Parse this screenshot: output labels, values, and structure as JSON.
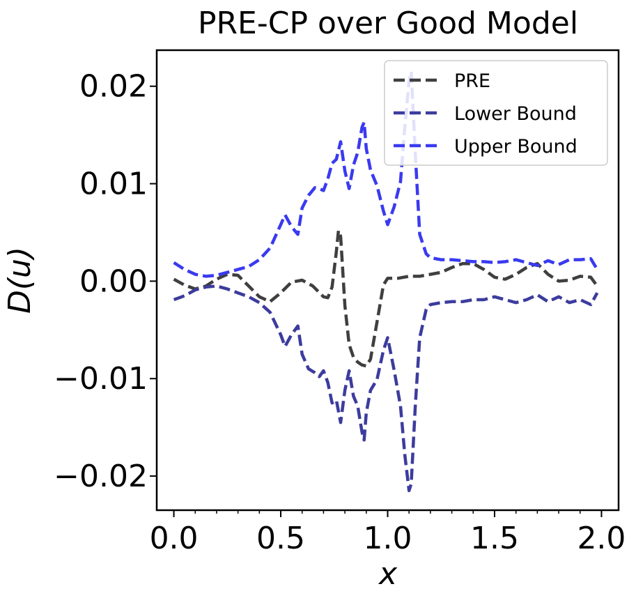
{
  "chart_data": {
    "type": "line",
    "title": "PRE-CP over Good Model",
    "xlabel": "x",
    "ylabel": "D(u)",
    "xlim": [
      -0.08,
      2.08
    ],
    "ylim": [
      -0.0235,
      0.0237
    ],
    "xticks": [
      0.0,
      0.5,
      1.0,
      1.5,
      2.0
    ],
    "xtick_labels": [
      "0.0",
      "0.5",
      "1.0",
      "1.5",
      "2.0"
    ],
    "yticks": [
      -0.02,
      -0.01,
      0.0,
      0.01,
      0.02
    ],
    "ytick_labels": [
      "−0.02",
      "−0.01",
      "0.00",
      "0.01",
      "0.02"
    ],
    "grid": false,
    "legend_position": "top-right",
    "series": [
      {
        "name": "PRE",
        "color": "#3f3f3f",
        "x": [
          0.0,
          0.05,
          0.1,
          0.15,
          0.2,
          0.25,
          0.3,
          0.35,
          0.4,
          0.45,
          0.5,
          0.55,
          0.6,
          0.65,
          0.7,
          0.72,
          0.74,
          0.76,
          0.77,
          0.78,
          0.8,
          0.82,
          0.84,
          0.86,
          0.88,
          0.9,
          0.92,
          0.95,
          0.98,
          1.0,
          1.05,
          1.1,
          1.15,
          1.2,
          1.25,
          1.3,
          1.35,
          1.4,
          1.45,
          1.5,
          1.55,
          1.6,
          1.65,
          1.7,
          1.75,
          1.8,
          1.85,
          1.9,
          1.95,
          1.98
        ],
        "values": [
          0.0002,
          -0.0004,
          -0.0008,
          -0.0005,
          0.0002,
          0.0007,
          0.0006,
          -0.0005,
          -0.0016,
          -0.0021,
          -0.0012,
          -0.0001,
          0.0001,
          -0.0005,
          -0.0016,
          -0.0017,
          -0.0006,
          0.003,
          0.0052,
          0.0046,
          -0.0025,
          -0.0065,
          -0.0078,
          -0.0083,
          -0.0086,
          -0.0087,
          -0.008,
          -0.0042,
          -0.0004,
          0.0003,
          0.0003,
          0.0005,
          0.0005,
          0.0007,
          0.0009,
          0.0014,
          0.0018,
          0.0018,
          0.0012,
          0.0004,
          0.0002,
          0.0007,
          0.0014,
          0.0018,
          0.0007,
          0.0,
          0.0001,
          0.0005,
          0.0004,
          -0.0005
        ]
      },
      {
        "name": "Lower Bound",
        "color": "#3c3c9e",
        "x": [
          0.0,
          0.05,
          0.1,
          0.15,
          0.2,
          0.25,
          0.3,
          0.35,
          0.4,
          0.45,
          0.5,
          0.52,
          0.55,
          0.58,
          0.6,
          0.63,
          0.66,
          0.68,
          0.7,
          0.72,
          0.74,
          0.76,
          0.78,
          0.8,
          0.82,
          0.84,
          0.86,
          0.88,
          0.89,
          0.9,
          0.92,
          0.95,
          0.98,
          1.0,
          1.03,
          1.06,
          1.08,
          1.1,
          1.11,
          1.13,
          1.15,
          1.18,
          1.2,
          1.25,
          1.3,
          1.35,
          1.4,
          1.45,
          1.5,
          1.55,
          1.6,
          1.65,
          1.7,
          1.75,
          1.8,
          1.85,
          1.9,
          1.95,
          1.98
        ],
        "values": [
          -0.0019,
          -0.0015,
          -0.0009,
          -0.0006,
          -0.0005,
          -0.0008,
          -0.0012,
          -0.0016,
          -0.0022,
          -0.0032,
          -0.0055,
          -0.0067,
          -0.0055,
          -0.0046,
          -0.0075,
          -0.009,
          -0.0094,
          -0.0098,
          -0.0092,
          -0.0104,
          -0.0125,
          -0.0122,
          -0.0145,
          -0.0112,
          -0.0092,
          -0.0118,
          -0.0128,
          -0.0155,
          -0.0163,
          -0.0135,
          -0.0112,
          -0.0101,
          -0.0071,
          -0.0058,
          -0.0091,
          -0.0128,
          -0.0178,
          -0.0215,
          -0.0208,
          -0.0125,
          -0.0058,
          -0.0029,
          -0.0024,
          -0.0022,
          -0.0021,
          -0.0021,
          -0.0019,
          -0.0019,
          -0.0016,
          -0.0019,
          -0.0022,
          -0.0019,
          -0.0014,
          -0.0021,
          -0.0016,
          -0.0022,
          -0.0019,
          -0.0024,
          -0.0012
        ]
      },
      {
        "name": "Upper Bound",
        "color": "#3a3af0",
        "x": [
          0.0,
          0.05,
          0.1,
          0.15,
          0.2,
          0.25,
          0.3,
          0.35,
          0.4,
          0.45,
          0.5,
          0.52,
          0.55,
          0.58,
          0.6,
          0.63,
          0.66,
          0.68,
          0.7,
          0.72,
          0.74,
          0.76,
          0.78,
          0.8,
          0.82,
          0.84,
          0.86,
          0.88,
          0.89,
          0.9,
          0.92,
          0.95,
          0.98,
          1.0,
          1.03,
          1.06,
          1.08,
          1.1,
          1.11,
          1.13,
          1.15,
          1.18,
          1.2,
          1.25,
          1.3,
          1.35,
          1.4,
          1.45,
          1.5,
          1.55,
          1.6,
          1.65,
          1.7,
          1.75,
          1.8,
          1.85,
          1.9,
          1.95,
          1.98
        ],
        "values": [
          0.0019,
          0.0012,
          0.0007,
          0.0005,
          0.0006,
          0.0009,
          0.0012,
          0.0015,
          0.0022,
          0.0034,
          0.0058,
          0.0068,
          0.0056,
          0.0048,
          0.0075,
          0.0088,
          0.0096,
          0.0095,
          0.0093,
          0.0105,
          0.0121,
          0.0125,
          0.0143,
          0.0113,
          0.0095,
          0.0119,
          0.0132,
          0.0158,
          0.0163,
          0.0136,
          0.0114,
          0.0098,
          0.0072,
          0.0058,
          0.0076,
          0.0102,
          0.0158,
          0.0205,
          0.0215,
          0.0128,
          0.0048,
          0.0028,
          0.0024,
          0.0022,
          0.0022,
          0.0021,
          0.002,
          0.002,
          0.0019,
          0.002,
          0.0022,
          0.0019,
          0.0016,
          0.0021,
          0.0017,
          0.0022,
          0.0022,
          0.0023,
          0.0012
        ]
      }
    ]
  }
}
